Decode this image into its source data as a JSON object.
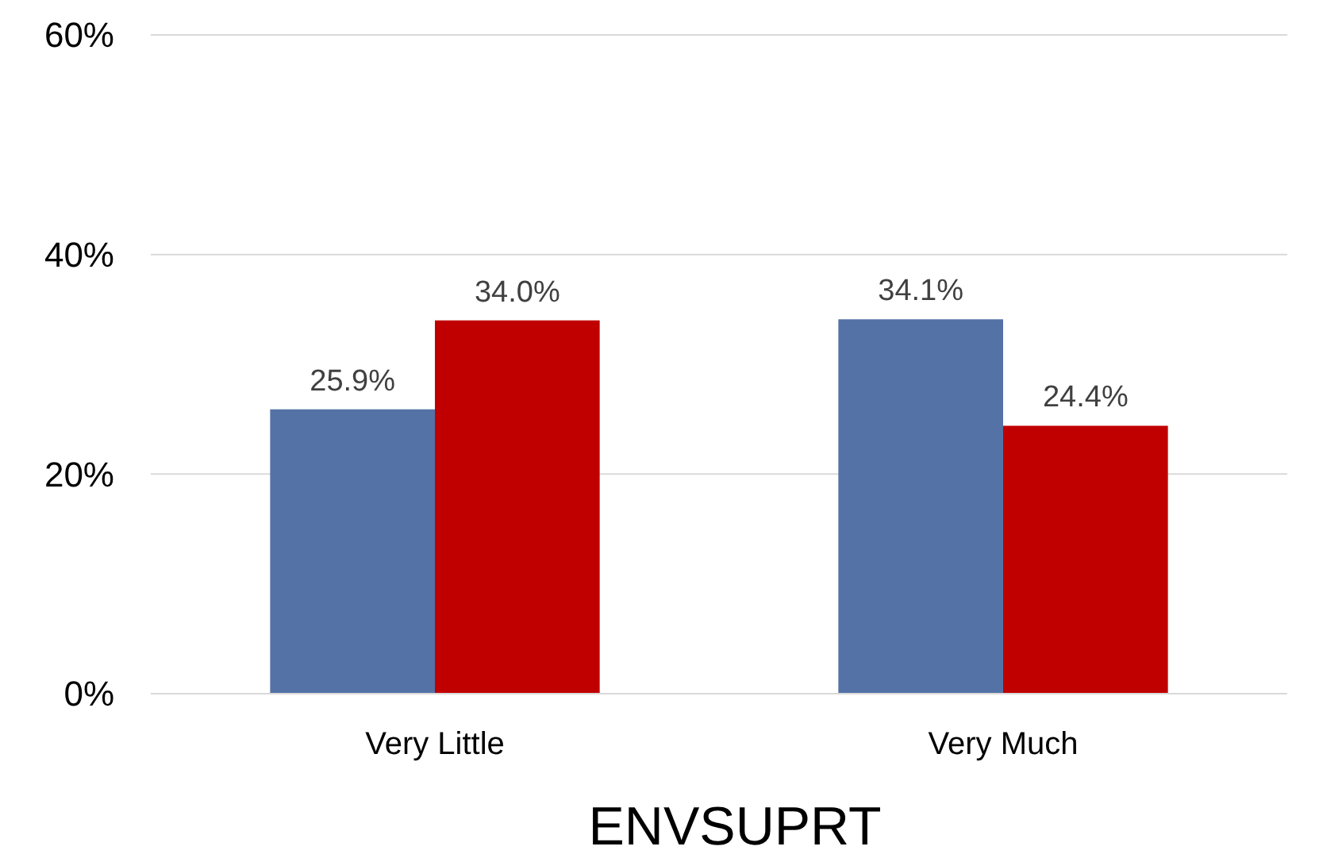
{
  "chart_data": {
    "type": "bar",
    "xlabel": "ENVSUPRT",
    "categories": [
      "Very Little",
      "Very Much"
    ],
    "series": [
      {
        "color": "#5472a6",
        "values": [
          25.9,
          34.1
        ],
        "value_labels": [
          "25.9%",
          "34.1%"
        ]
      },
      {
        "color": "#c00000",
        "values": [
          34.0,
          24.4
        ],
        "value_labels": [
          "34.0%",
          "24.4%"
        ]
      }
    ],
    "ylim": [
      0,
      60
    ],
    "yticks": [
      {
        "value": 0,
        "label": "0%"
      },
      {
        "value": 20,
        "label": "20%"
      },
      {
        "value": 40,
        "label": "40%"
      },
      {
        "value": 60,
        "label": "60%"
      }
    ],
    "grid": "y"
  }
}
